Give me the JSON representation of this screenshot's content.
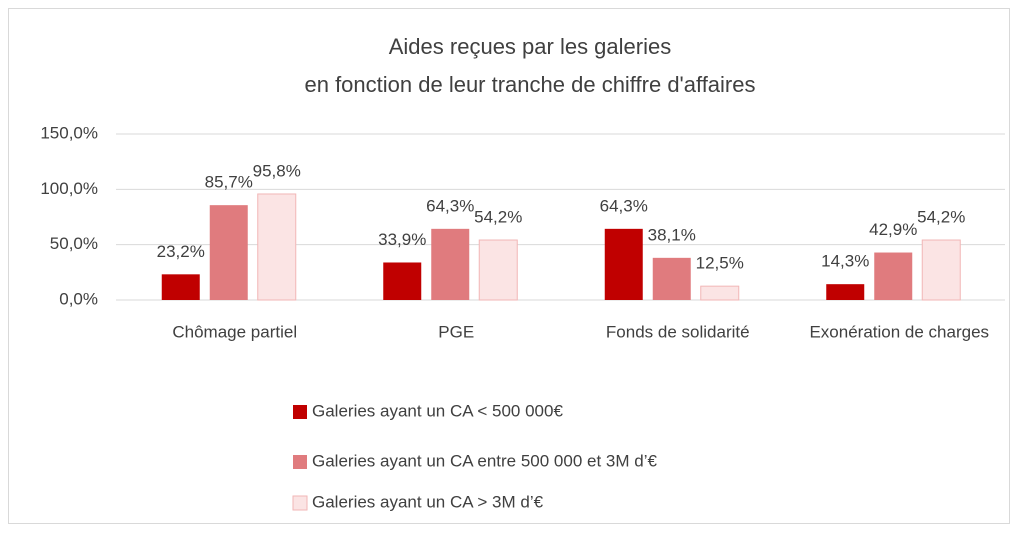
{
  "chart_data": {
    "type": "bar",
    "title": [
      "Aides reçues par les galeries",
      "en fonction de leur tranche de chiffre d'affaires"
    ],
    "categories": [
      "Chômage partiel",
      "PGE",
      "Fonds de solidarité",
      "Exonération de charges"
    ],
    "series": [
      {
        "name": "Galeries ayant un CA < 500 000€",
        "color": "#c00000",
        "values": [
          23.2,
          33.9,
          64.3,
          14.3
        ],
        "value_labels": [
          "23,2%",
          "33,9%",
          "64,3%",
          "14,3%"
        ]
      },
      {
        "name": "Galeries ayant un CA entre 500 000 et 3M d’€",
        "color": "#e07b7e",
        "values": [
          85.7,
          64.3,
          38.1,
          42.9
        ],
        "value_labels": [
          "85,7%",
          "64,3%",
          "38,1%",
          "42,9%"
        ]
      },
      {
        "name": "Galeries ayant un CA > 3M d’€",
        "color": "#fbe4e4",
        "edgecolor": "#f2b6b6",
        "values": [
          95.8,
          54.2,
          12.5,
          54.2
        ],
        "value_labels": [
          "95,8%",
          "54,2%",
          "12,5%",
          "54,2%"
        ]
      }
    ],
    "ylim": [
      0,
      150
    ],
    "yticks": [
      {
        "value": 0,
        "label": "0,0%"
      },
      {
        "value": 50,
        "label": "50,0%"
      },
      {
        "value": 100,
        "label": "100,0%"
      },
      {
        "value": 150,
        "label": "150,0%"
      }
    ],
    "grid": true,
    "legend": "bottom"
  }
}
